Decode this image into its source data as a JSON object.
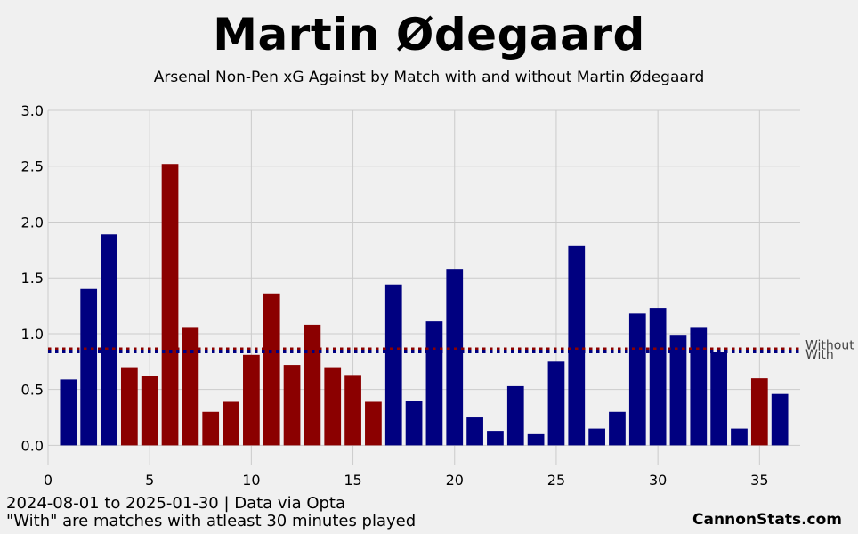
{
  "header": {
    "title": "Martin Ødegaard",
    "subtitle": "Arsenal Non-Pen xG Against by Match with and without Martin Ødegaard"
  },
  "footer": {
    "line1": "2024-08-01 to 2025-01-30 | Data via Opta",
    "line2": "\"With\" are matches with atleast 30 minutes played",
    "brand": "CannonStats.com"
  },
  "colors": {
    "with": "#000080",
    "without": "#8b0000",
    "background": "#f0f0f0",
    "grid": "#cbcbcb"
  },
  "chart_data": {
    "type": "bar",
    "title": "Arsenal Non-Pen xG Against by Match with and without Martin Ødegaard",
    "xlabel": "",
    "ylabel": "",
    "xlim": [
      0,
      37
    ],
    "ylim": [
      -0.18,
      3.0
    ],
    "xticks": [
      0,
      5,
      10,
      15,
      20,
      25,
      30,
      35
    ],
    "yticks": [
      0.0,
      0.5,
      1.0,
      1.5,
      2.0,
      2.5,
      3.0
    ],
    "ytick_labels": [
      "0.0",
      "0.5",
      "1.0",
      "1.5",
      "2.0",
      "2.5",
      "3.0"
    ],
    "grid": true,
    "x": [
      1,
      2,
      3,
      4,
      5,
      6,
      7,
      8,
      9,
      10,
      11,
      12,
      13,
      14,
      15,
      16,
      17,
      18,
      19,
      20,
      21,
      22,
      23,
      24,
      25,
      26,
      27,
      28,
      29,
      30,
      31,
      32,
      33,
      34,
      35,
      36
    ],
    "values": [
      0.59,
      1.4,
      1.89,
      0.7,
      0.62,
      2.52,
      1.06,
      0.3,
      0.39,
      0.81,
      1.36,
      0.72,
      1.08,
      0.7,
      0.63,
      0.39,
      1.44,
      0.4,
      1.11,
      1.58,
      0.25,
      0.13,
      0.53,
      0.1,
      0.75,
      1.79,
      0.15,
      0.3,
      1.18,
      1.23,
      0.99,
      1.06,
      0.84,
      0.15,
      0.6,
      0.46
    ],
    "status": [
      "With",
      "With",
      "With",
      "Without",
      "Without",
      "Without",
      "Without",
      "Without",
      "Without",
      "Without",
      "Without",
      "Without",
      "Without",
      "Without",
      "Without",
      "Without",
      "With",
      "With",
      "With",
      "With",
      "With",
      "With",
      "With",
      "With",
      "With",
      "With",
      "With",
      "With",
      "With",
      "With",
      "With",
      "With",
      "With",
      "With",
      "Without",
      "With"
    ],
    "reference_lines": [
      {
        "name": "Without",
        "value": 0.86
      },
      {
        "name": "With",
        "value": 0.84
      }
    ]
  }
}
